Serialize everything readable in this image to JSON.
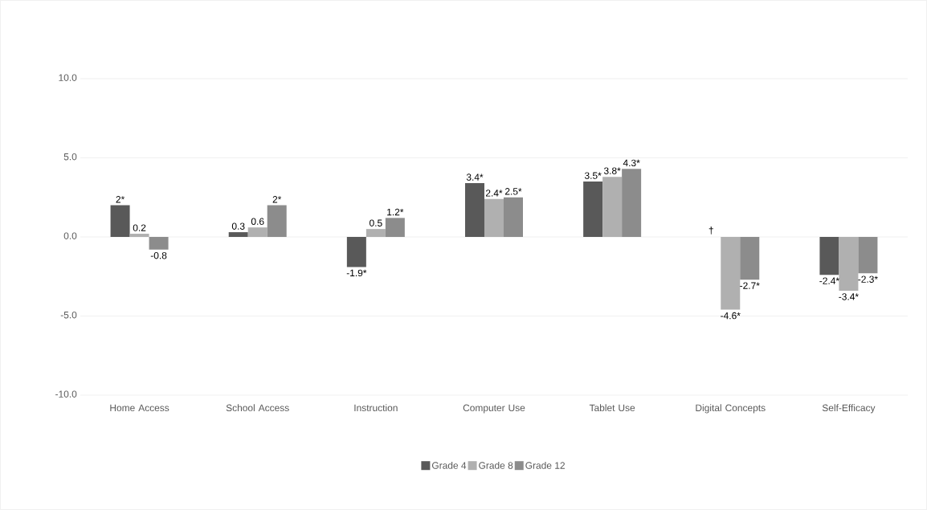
{
  "chart_data": {
    "type": "bar",
    "categories": [
      "Home Access",
      "School Access",
      "Instruction",
      "Computer Use",
      "Tablet Use",
      "Digital Concepts",
      "Self-Efficacy"
    ],
    "series": [
      {
        "name": "Grade 4",
        "color": "#595959",
        "values": [
          2,
          0.3,
          -1.9,
          3.4,
          3.5,
          null,
          -2.4
        ],
        "value_labels": [
          "2*",
          "0.3",
          "-1.9*",
          "3.4*",
          "3.5*",
          "†",
          "-2.4*"
        ]
      },
      {
        "name": "Grade 8",
        "color": "#b0b0b0",
        "values": [
          0.2,
          0.6,
          0.5,
          2.4,
          3.8,
          -4.6,
          -3.4
        ],
        "value_labels": [
          "0.2",
          "0.6",
          "0.5",
          "2.4*",
          "3.8*",
          "-4.6*",
          "-3.4*"
        ]
      },
      {
        "name": "Grade 12",
        "color": "#8c8c8c",
        "values": [
          -0.8,
          2,
          1.2,
          2.5,
          4.3,
          -2.7,
          -2.3
        ],
        "value_labels": [
          "-0.8",
          "2*",
          "1.2*",
          "2.5*",
          "4.3*",
          "-2.7*",
          "-2.3*"
        ]
      }
    ],
    "ylim": [
      -10,
      10
    ],
    "yticks": [
      {
        "value": -10,
        "label": "-10.0"
      },
      {
        "value": -5,
        "label": "-5.0"
      },
      {
        "value": 0,
        "label": "0.0"
      },
      {
        "value": 5,
        "label": "5.0"
      },
      {
        "value": 10,
        "label": "10.0"
      }
    ],
    "grid": "y",
    "legend": "bottom"
  }
}
